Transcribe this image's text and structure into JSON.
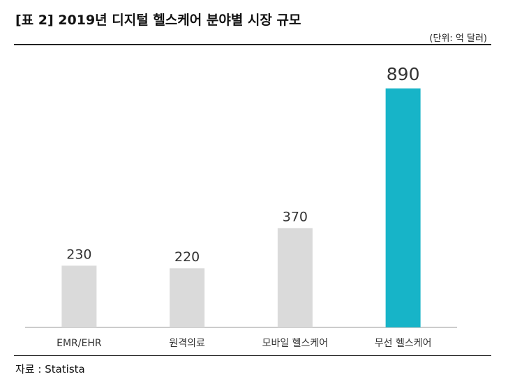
{
  "title": "[표 2] 2019년 디지털 헬스케어 분야별 시장 규모",
  "unit": "(단위: 억 달러)",
  "source": "자료 : Statista",
  "colors": {
    "bar": "#dadada",
    "highlight": "#17b4c8",
    "axis": "#bbbbbb"
  },
  "chart_data": {
    "type": "bar",
    "categories": [
      "EMR/EHR",
      "원격의료",
      "모바일 헬스케어",
      "무선 헬스케어"
    ],
    "values": [
      230,
      220,
      370,
      890
    ],
    "highlight_index": 3,
    "title": "[표 2] 2019년 디지털 헬스케어 분야별 시장 규모",
    "xlabel": "",
    "ylabel": "",
    "ylim": [
      0,
      890
    ],
    "grid": false,
    "legend": "none"
  }
}
